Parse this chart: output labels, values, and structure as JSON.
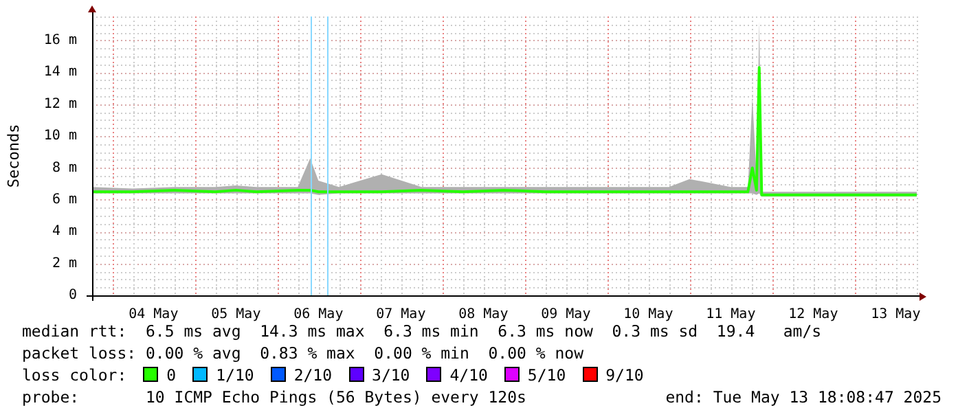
{
  "chart_data": {
    "type": "line",
    "ylabel": "Seconds",
    "legend_title": "loss color:",
    "legend": "bottom",
    "grid": true,
    "marker": "none",
    "line_style": "solid",
    "xlim": [
      "2025-05-03T18:08",
      "2025-05-13T18:08"
    ],
    "xticks": [
      {
        "value": "2025-05-04T00:00",
        "label": null
      },
      {
        "value": "2025-05-05T00:00",
        "label": null
      },
      {
        "value": "2025-05-06T00:00",
        "label": null
      },
      {
        "value": "2025-05-07T00:00",
        "label": null
      },
      {
        "value": "2025-05-08T00:00",
        "label": null
      },
      {
        "value": "2025-05-09T00:00",
        "label": null
      },
      {
        "value": "2025-05-10T00:00",
        "label": null
      },
      {
        "value": "2025-05-11T00:00",
        "label": null
      },
      {
        "value": "2025-05-12T00:00",
        "label": null
      },
      {
        "value": "2025-05-13T00:00",
        "label": null
      },
      {
        "value": "2025-05-04T12:00",
        "label": "04 May"
      },
      {
        "value": "2025-05-05T12:00",
        "label": "05 May"
      },
      {
        "value": "2025-05-06T12:00",
        "label": "06 May"
      },
      {
        "value": "2025-05-07T12:00",
        "label": "07 May"
      },
      {
        "value": "2025-05-08T12:00",
        "label": "08 May"
      },
      {
        "value": "2025-05-09T12:00",
        "label": "09 May"
      },
      {
        "value": "2025-05-10T12:00",
        "label": "10 May"
      },
      {
        "value": "2025-05-11T12:00",
        "label": "11 May"
      },
      {
        "value": "2025-05-12T12:00",
        "label": "12 May"
      },
      {
        "value": "2025-05-13T12:00",
        "label": "13 May"
      }
    ],
    "ylim": [
      0,
      17.5
    ],
    "yticks": [
      0,
      {
        "value": 2,
        "label": "2 m"
      },
      {
        "value": 4,
        "label": "4 m"
      },
      {
        "value": 6,
        "label": "6 m"
      },
      {
        "value": 8,
        "label": "8 m"
      },
      {
        "value": 10,
        "label": "10 m"
      },
      {
        "value": 12,
        "label": "12 m"
      },
      {
        "value": 14,
        "label": "14 m"
      },
      {
        "value": 16,
        "label": "16 m"
      }
    ],
    "x": [
      "2025-05-03T18:08",
      "2025-05-04T06:00",
      "2025-05-04T18:00",
      "2025-05-05T06:00",
      "2025-05-05T12:00",
      "2025-05-05T18:00",
      "2025-05-06T06:00",
      "2025-05-06T09:36",
      "2025-05-06T12:00",
      "2025-05-06T18:00",
      "2025-05-07T06:24",
      "2025-05-07T18:00",
      "2025-05-08T06:00",
      "2025-05-08T18:00",
      "2025-05-09T06:00",
      "2025-05-09T18:00",
      "2025-05-10T06:00",
      "2025-05-10T18:00",
      "2025-05-11T00:00",
      "2025-05-11T12:00",
      "2025-05-11T17:00",
      "2025-05-11T18:17",
      "2025-05-11T19:30",
      "2025-05-11T20:17",
      "2025-05-11T21:00",
      "2025-05-12T06:00",
      "2025-05-12T18:00",
      "2025-05-13T06:00",
      "2025-05-13T18:08"
    ],
    "series": [
      {
        "name": "0",
        "color": "#26ff00",
        "values": [
          6.5,
          6.5,
          6.6,
          6.5,
          6.6,
          6.5,
          6.6,
          6.6,
          6.5,
          6.5,
          6.5,
          6.6,
          6.5,
          6.6,
          6.5,
          6.5,
          6.5,
          6.5,
          6.5,
          6.5,
          6.5,
          8.0,
          6.6,
          14.3,
          6.3,
          6.3,
          6.3,
          6.3,
          6.3
        ],
        "lower": [
          6.4,
          6.4,
          6.4,
          6.4,
          6.4,
          6.4,
          6.4,
          6.4,
          6.3,
          6.4,
          6.4,
          6.4,
          6.4,
          6.4,
          6.4,
          6.4,
          6.4,
          6.4,
          6.4,
          6.4,
          6.4,
          6.4,
          6.3,
          6.4,
          6.2,
          6.2,
          6.2,
          6.2,
          6.2
        ],
        "upper": [
          6.8,
          6.7,
          6.8,
          6.8,
          6.9,
          6.8,
          6.8,
          8.6,
          7.2,
          6.8,
          7.6,
          6.8,
          6.8,
          6.8,
          6.8,
          6.8,
          6.8,
          6.8,
          7.3,
          6.8,
          6.8,
          12.4,
          7.5,
          17.2,
          6.5,
          6.5,
          6.5,
          6.5,
          6.5
        ]
      },
      {
        "name": "1/10",
        "color": "#00b8ff",
        "values": [
          null,
          null,
          null,
          null,
          null,
          null,
          null,
          null,
          null,
          null,
          null,
          null,
          null,
          null,
          null,
          null,
          null,
          null,
          null,
          null,
          null,
          null,
          null,
          null,
          null,
          null,
          null,
          null,
          null
        ]
      },
      {
        "name": "2/10",
        "color": "#0059ff",
        "values": [
          null,
          null,
          null,
          null,
          null,
          null,
          null,
          null,
          null,
          null,
          null,
          null,
          null,
          null,
          null,
          null,
          null,
          null,
          null,
          null,
          null,
          null,
          null,
          null,
          null,
          null,
          null,
          null,
          null
        ]
      },
      {
        "name": "3/10",
        "color": "#5e00ff",
        "values": [
          null,
          null,
          null,
          null,
          null,
          null,
          null,
          null,
          null,
          null,
          null,
          null,
          null,
          null,
          null,
          null,
          null,
          null,
          null,
          null,
          null,
          null,
          null,
          null,
          null,
          null,
          null,
          null,
          null
        ]
      },
      {
        "name": "4/10",
        "color": "#7e00ff",
        "values": [
          null,
          null,
          null,
          null,
          null,
          null,
          null,
          null,
          null,
          null,
          null,
          null,
          null,
          null,
          null,
          null,
          null,
          null,
          null,
          null,
          null,
          null,
          null,
          null,
          null,
          null,
          null,
          null,
          null
        ]
      },
      {
        "name": "5/10",
        "color": "#dd00ff",
        "values": [
          null,
          null,
          null,
          null,
          null,
          null,
          null,
          null,
          null,
          null,
          null,
          null,
          null,
          null,
          null,
          null,
          null,
          null,
          null,
          null,
          null,
          null,
          null,
          null,
          null,
          null,
          null,
          null,
          null
        ]
      },
      {
        "name": "9/10",
        "color": "#ff0000",
        "values": [
          null,
          null,
          null,
          null,
          null,
          null,
          null,
          null,
          null,
          null,
          null,
          null,
          null,
          null,
          null,
          null,
          null,
          null,
          null,
          null,
          null,
          null,
          null,
          null,
          null,
          null,
          null,
          null,
          null
        ]
      }
    ],
    "ref_lines": [
      {
        "axis": "x",
        "value": "2025-05-06T09:36",
        "color": "#88d8ff"
      },
      {
        "axis": "x",
        "value": "2025-05-06T14:24",
        "color": "#88d8ff"
      }
    ],
    "annotations": [
      "median rtt:  6.5 ms avg  14.3 ms max  6.3 ms min  6.3 ms now  0.3 ms sd  19.4   am/s",
      "packet loss: 0.00 % avg  0.83 % max  0.00 % min  0.00 % now",
      "probe:       10 ICMP Echo Pings (56 Bytes) every 120s",
      "end: Tue May 13 18:08:47 2025"
    ]
  }
}
